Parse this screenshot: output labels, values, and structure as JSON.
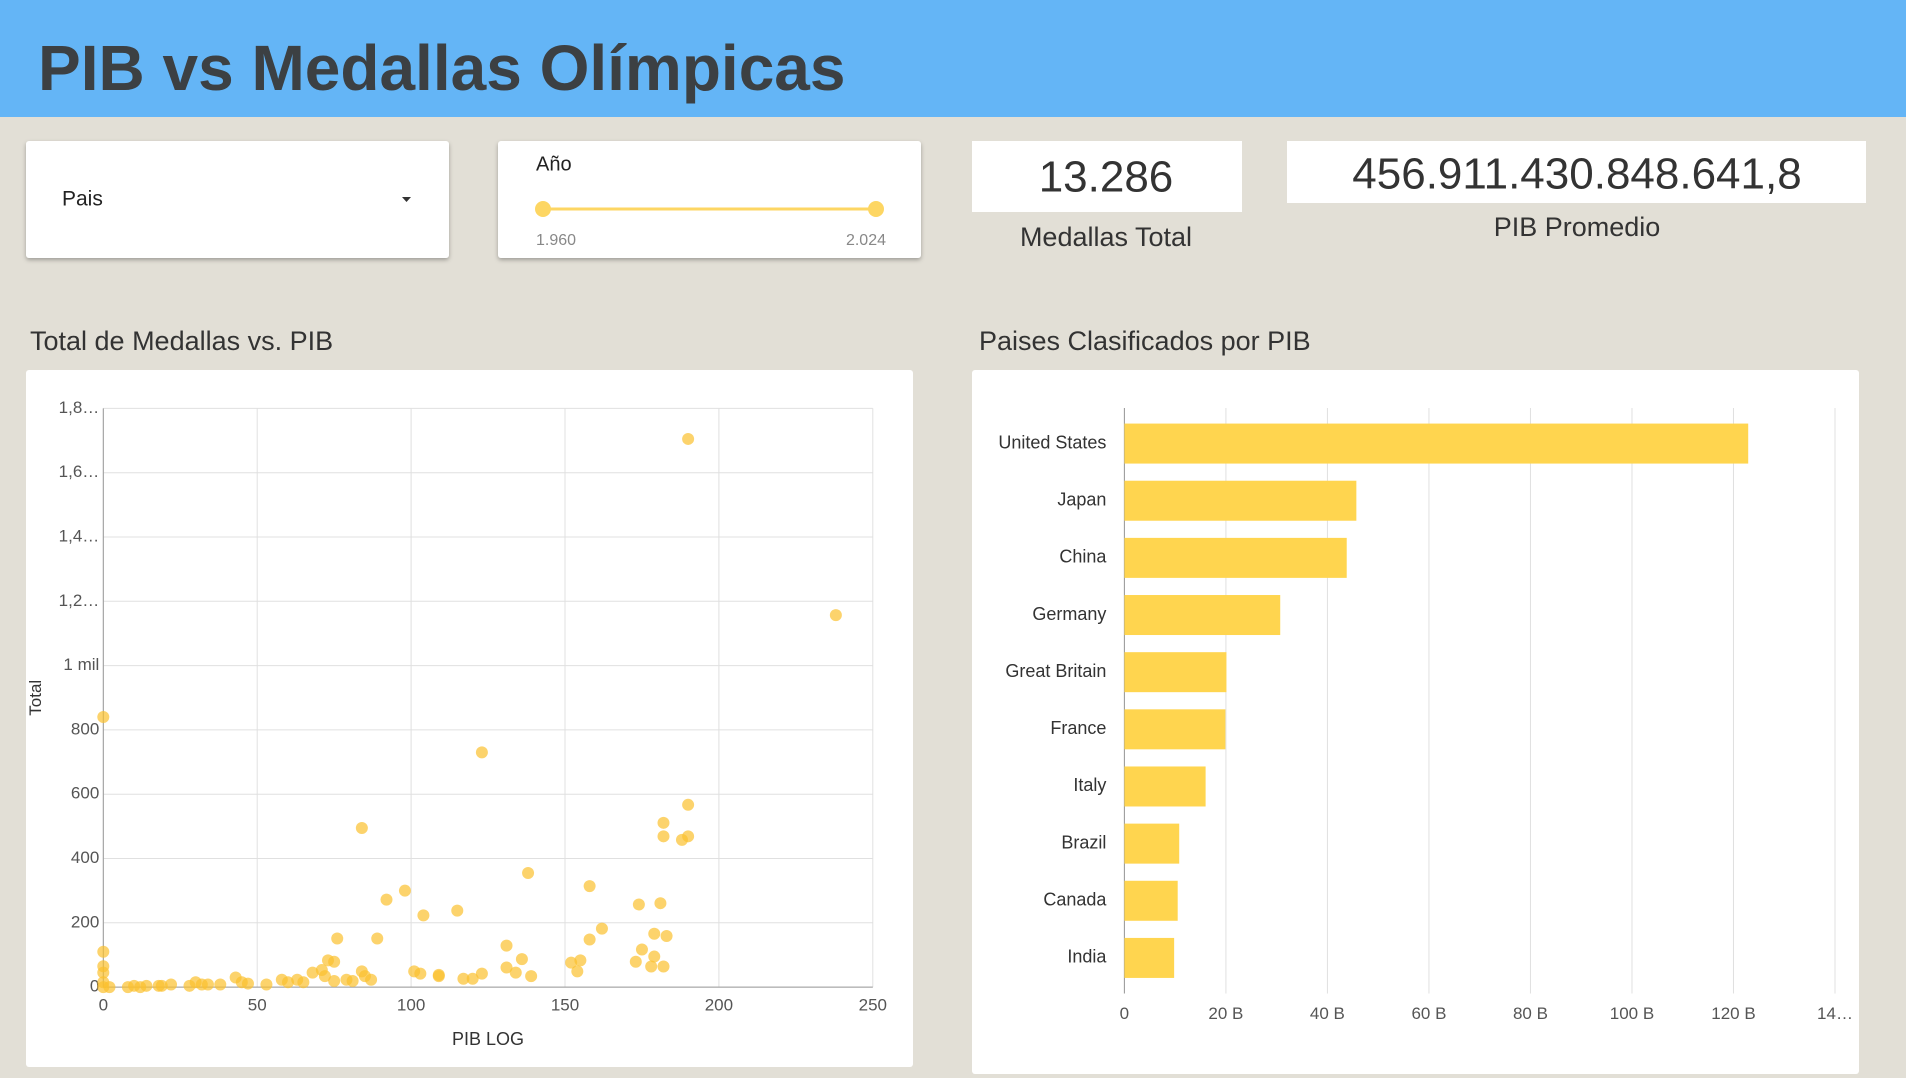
{
  "header": {
    "title": "PIB vs Medallas Olímpicas"
  },
  "controls": {
    "country": {
      "label": "Pais"
    },
    "year": {
      "label": "Año",
      "min": "1.960",
      "max": "2.024"
    }
  },
  "kpis": [
    {
      "value": "13.286",
      "label": "Medallas Total"
    },
    {
      "value": "456.911.430.848.641,8",
      "label": "PIB Promedio"
    }
  ],
  "chart_data": [
    {
      "type": "scatter",
      "title": "Total de Medallas vs. PIB",
      "x_label": "PIB LOG",
      "y_label": "Total",
      "color": "#fbc02d",
      "x": [
        0,
        0,
        0,
        0,
        0,
        0,
        190,
        238,
        123,
        84,
        138,
        98,
        92,
        104,
        115,
        158,
        190,
        182,
        182,
        190,
        188,
        174,
        181,
        76,
        89,
        158,
        162,
        179,
        183,
        175,
        179,
        173,
        178,
        182,
        131,
        131,
        136,
        134,
        139,
        152,
        155,
        154,
        101,
        103,
        109,
        109,
        117,
        120,
        123,
        73,
        75,
        71,
        68,
        72,
        75,
        79,
        81,
        84,
        85,
        87,
        58,
        60,
        63,
        65,
        53,
        43,
        45,
        47,
        38,
        34,
        30,
        28,
        32,
        22,
        18,
        19,
        10,
        8,
        12,
        14,
        2
      ],
      "values": [
        840,
        110,
        65,
        45,
        15,
        0,
        1705,
        1157,
        730,
        495,
        355,
        300,
        272,
        223,
        238,
        314,
        567,
        511,
        469,
        469,
        458,
        257,
        261,
        151,
        151,
        148,
        182,
        166,
        159,
        117,
        95,
        79,
        64,
        64,
        129,
        61,
        87,
        45,
        34,
        76,
        83,
        49,
        49,
        42,
        34,
        38,
        26,
        26,
        42,
        83,
        79,
        53,
        45,
        34,
        19,
        23,
        19,
        49,
        34,
        23,
        23,
        15,
        23,
        15,
        8,
        30,
        15,
        11,
        8,
        8,
        15,
        4,
        8,
        8,
        4,
        4,
        4,
        0,
        0,
        4,
        0
      ],
      "xlim": [
        0,
        250
      ],
      "ylim": [
        0,
        1800
      ],
      "xticks": [
        0,
        50,
        100,
        150,
        200,
        250
      ],
      "yticks": [
        0,
        200,
        400,
        600,
        800,
        {
          "value": 1000,
          "label": "1 mil"
        },
        {
          "value": 1200,
          "label": "1,2…"
        },
        {
          "value": 1400,
          "label": "1,4…"
        },
        {
          "value": 1600,
          "label": "1,6…"
        },
        {
          "value": 1800,
          "label": "1,8…"
        }
      ],
      "grid": true
    },
    {
      "type": "bar",
      "orientation": "horizontal",
      "title": "Paises Clasificados por PIB",
      "color": "#ffd54f",
      "categories": [
        "United States",
        "Japan",
        "China",
        "Germany",
        "Great Britain",
        "France",
        "Italy",
        "Brazil",
        "Canada",
        "India"
      ],
      "values": [
        122900000000,
        45700000000,
        43800000000,
        30700000000,
        20100000000,
        19900000000,
        16000000000,
        10800000000,
        10500000000,
        9800000000
      ],
      "xlim": [
        0,
        140000000000
      ],
      "xticks": [
        0,
        {
          "value": 20000000000,
          "label": "20 B"
        },
        {
          "value": 40000000000,
          "label": "40 B"
        },
        {
          "value": 60000000000,
          "label": "60 B"
        },
        {
          "value": 80000000000,
          "label": "80 B"
        },
        {
          "value": 100000000000,
          "label": "100 B"
        },
        {
          "value": 120000000000,
          "label": "120 B"
        },
        {
          "value": 140000000000,
          "label": "14…"
        }
      ],
      "grid": true
    }
  ]
}
